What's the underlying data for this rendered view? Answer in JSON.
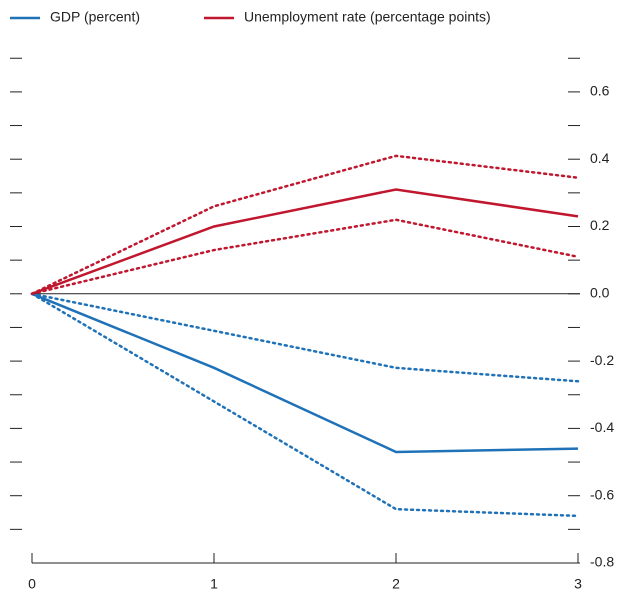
{
  "chart_data": {
    "type": "line",
    "x": [
      0,
      1,
      2,
      3
    ],
    "xlim": [
      0,
      3
    ],
    "xticks": [
      0,
      1,
      2,
      3
    ],
    "ylim": [
      -0.8,
      0.7
    ],
    "yticks": [
      {
        "value": -0.8,
        "label": "-0.8"
      },
      -0.6,
      -0.4,
      -0.2,
      {
        "value": 0,
        "label": "0.0"
      },
      0.2,
      0.4,
      0.6
    ],
    "series": [
      {
        "name": "GDP (percent)",
        "color": "#1f72b8",
        "values": [
          0,
          -0.22,
          -0.47,
          -0.46
        ],
        "lower": [
          0,
          -0.32,
          -0.64,
          -0.66
        ],
        "upper": [
          0,
          -0.11,
          -0.22,
          -0.26
        ]
      },
      {
        "name": "Unemployment rate (percentage points)",
        "color": "#c0172f",
        "values": [
          0,
          0.2,
          0.31,
          0.23
        ],
        "lower": [
          0,
          0.13,
          0.22,
          0.11
        ],
        "upper": [
          0,
          0.26,
          0.41,
          0.345
        ]
      }
    ]
  }
}
